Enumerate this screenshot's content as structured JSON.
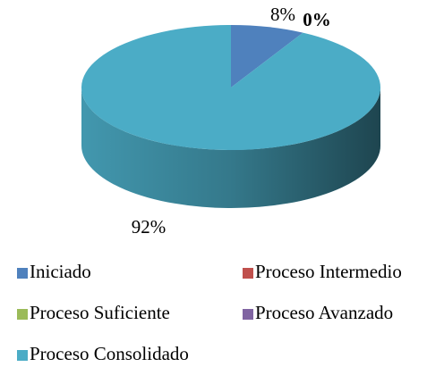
{
  "chart_data": {
    "type": "pie",
    "three_d": true,
    "categories": [
      "Iniciado",
      "Proceso Intermedio",
      "Proceso Suficiente",
      "Proceso Avanzado",
      "Proceso Consolidado"
    ],
    "values": [
      8,
      0,
      0,
      0,
      92
    ],
    "value_labels": [
      "8%",
      "0%",
      null,
      null,
      "92%"
    ],
    "colors": [
      "#4f81bd",
      "#c0504d",
      "#9bbb59",
      "#8064a2",
      "#4bacc6"
    ],
    "legend": "bottom"
  }
}
